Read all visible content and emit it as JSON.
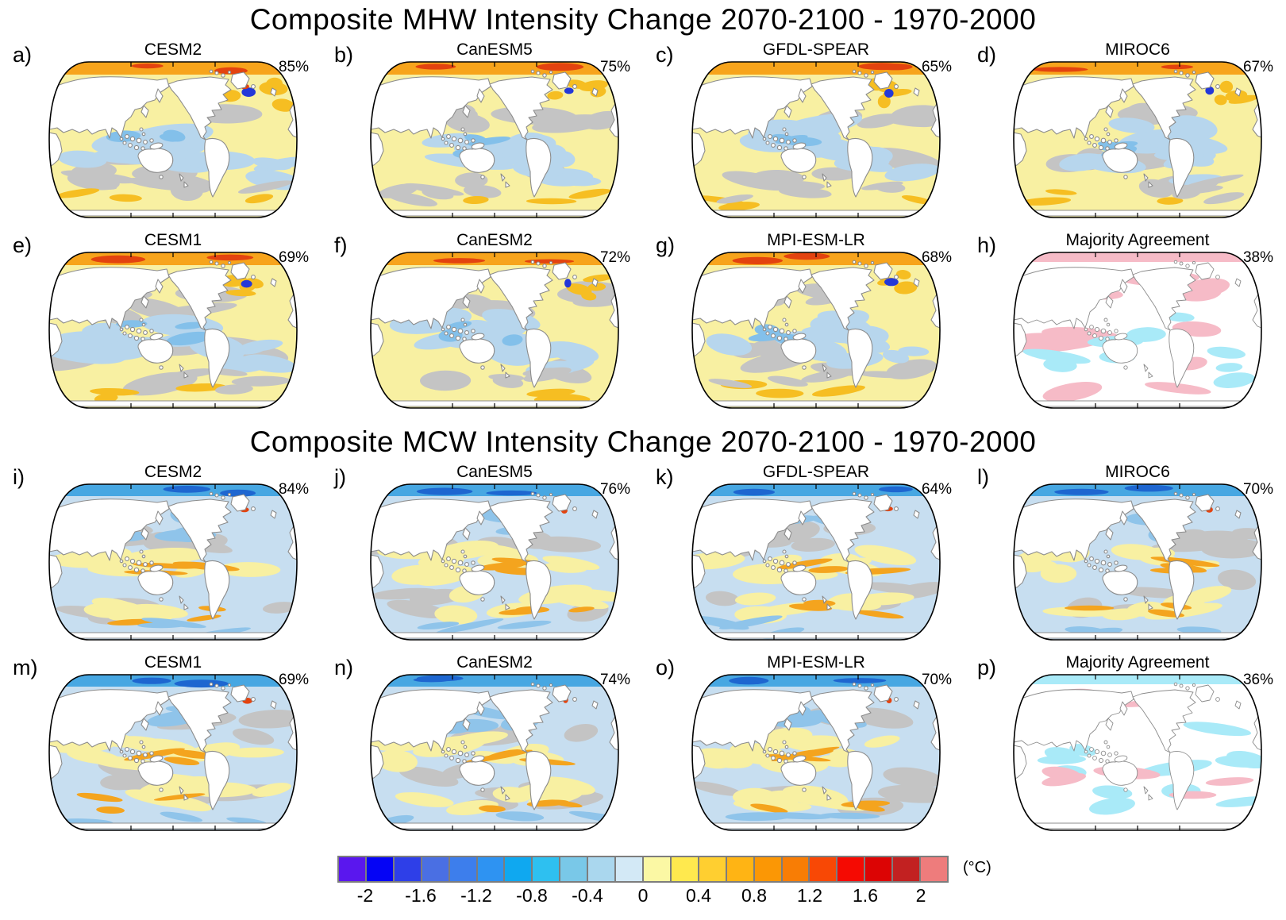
{
  "chart_data": {
    "type": "heatmap",
    "subtype": "global-map-panel-grid",
    "projection": "robinson-pacific-centered",
    "groups": [
      {
        "title": "Composite MHW Intensity Change 2070-2100 - 1970-2000",
        "panels": [
          {
            "tag": "a)",
            "model": "CESM2",
            "agreement": "85%"
          },
          {
            "tag": "b)",
            "model": "CanESM5",
            "agreement": "75%"
          },
          {
            "tag": "c)",
            "model": "GFDL-SPEAR",
            "agreement": "65%"
          },
          {
            "tag": "d)",
            "model": "MIROC6",
            "agreement": "67%"
          },
          {
            "tag": "e)",
            "model": "CESM1",
            "agreement": "69%"
          },
          {
            "tag": "f)",
            "model": "CanESM2",
            "agreement": "72%"
          },
          {
            "tag": "g)",
            "model": "MPI-ESM-LR",
            "agreement": "68%"
          },
          {
            "tag": "h)",
            "model": "Majority Agreement",
            "agreement": "38%"
          }
        ]
      },
      {
        "title": "Composite MCW Intensity Change 2070-2100 - 1970-2000",
        "panels": [
          {
            "tag": "i)",
            "model": "CESM2",
            "agreement": "84%"
          },
          {
            "tag": "j)",
            "model": "CanESM5",
            "agreement": "76%"
          },
          {
            "tag": "k)",
            "model": "GFDL-SPEAR",
            "agreement": "64%"
          },
          {
            "tag": "l)",
            "model": "MIROC6",
            "agreement": "70%"
          },
          {
            "tag": "m)",
            "model": "CESM1",
            "agreement": "69%"
          },
          {
            "tag": "n)",
            "model": "CanESM2",
            "agreement": "74%"
          },
          {
            "tag": "o)",
            "model": "MPI-ESM-LR",
            "agreement": "70%"
          },
          {
            "tag": "p)",
            "model": "Majority Agreement",
            "agreement": "36%"
          }
        ]
      }
    ],
    "colorbar": {
      "unit_label": "(°C)",
      "tick_labels": [
        "-2",
        "-1.6",
        "-1.2",
        "-0.8",
        "-0.4",
        "0",
        "0.4",
        "0.8",
        "1.2",
        "1.6",
        "2"
      ],
      "tick_values": [
        -2,
        -1.6,
        -1.2,
        -0.8,
        -0.4,
        0,
        0.4,
        0.8,
        1.2,
        1.6,
        2
      ],
      "value_range": [
        -2.2,
        2.2
      ],
      "segment_colors": [
        "#5A17EE",
        "#0504F5",
        "#2E3FE8",
        "#4A6FE3",
        "#3D7EEC",
        "#2E93F2",
        "#0FA8F0",
        "#2EC0F0",
        "#79C8E8",
        "#AAD7EE",
        "#D3E9F6",
        "#FBF8A4",
        "#FFE94E",
        "#FFCF30",
        "#FFB414",
        "#FB9705",
        "#F87D05",
        "#F84805",
        "#F50A02",
        "#DC0404",
        "#C22121",
        "#EE7C7C"
      ]
    },
    "palette": {
      "mhw": {
        "base": "#F8F0A2",
        "cool": "#B7D6ED",
        "cool_deep": "#83C0EA",
        "cool_navy": "#2438D8",
        "neutral_gray": "#C4C4C4",
        "arctic": "#F7A41C",
        "hot": "#F6BE22",
        "hot_deep": "#E3430F"
      },
      "mcw": {
        "base": "#C7DEF0",
        "warm": "#F8F0A2",
        "warm_deep": "#F4A41E",
        "cool_deep": "#8FC4EA",
        "neutral_gray": "#C4C4C4",
        "arctic": "#47A7E2",
        "arctic_deep": "#1E66D0",
        "hot_spot": "#E3430F"
      },
      "agreement_positive": "#F6BBC7",
      "agreement_negative": "#A9EAF8",
      "land": "#FFFFFF",
      "coast": "#8C8C8C",
      "outline": "#000000"
    }
  }
}
